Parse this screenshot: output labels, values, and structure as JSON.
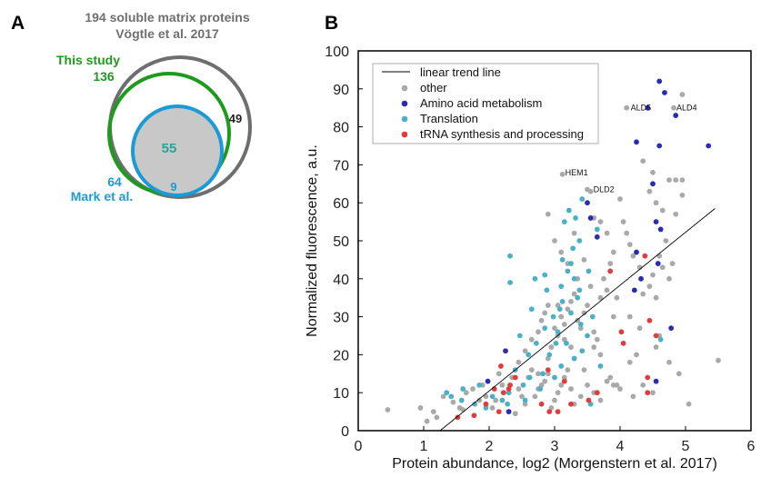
{
  "panels": {
    "a_letter": "A",
    "b_letter": "B"
  },
  "venn": {
    "title_line1": "194 soluble matrix proteins",
    "title_line2": "Vögtle et al. 2017",
    "this_study": {
      "label": "This study",
      "count": "136",
      "color": "#1e9a1e"
    },
    "mark": {
      "label": "Mark et al.",
      "count": "64",
      "color": "#1b9ad6"
    },
    "outer": {
      "color": "#6e6e6e"
    },
    "outer_only": "49",
    "overlap_all": "55",
    "mark_only_region": "9",
    "overlap_fill": "#c8c8c8",
    "overlap_text_color": "#2aa39b"
  },
  "chart_data": {
    "type": "scatter",
    "title": "",
    "xlabel": "Protein abundance, log2 (Morgenstern et al. 2017)",
    "ylabel": "Normalized fluorescence, a.u.",
    "xlim": [
      0,
      6
    ],
    "ylim": [
      0,
      100
    ],
    "xticks": [
      "0",
      "1",
      "2",
      "3",
      "4",
      "5",
      "6"
    ],
    "yticks": [
      "0",
      "10",
      "20",
      "30",
      "40",
      "50",
      "60",
      "70",
      "80",
      "90",
      "100"
    ],
    "grid": false,
    "legend_position": "top-left",
    "trend_line": {
      "name": "linear trend line",
      "x": [
        1.25,
        5.45
      ],
      "y": [
        0,
        58.5
      ],
      "color": "#000000"
    },
    "series": [
      {
        "name": "other",
        "color": "#a9a9a9",
        "points": [
          [
            0.45,
            5.5
          ],
          [
            0.95,
            6
          ],
          [
            1.05,
            2.5
          ],
          [
            1.15,
            5
          ],
          [
            1.2,
            3.5
          ],
          [
            1.3,
            9
          ],
          [
            1.45,
            7.5
          ],
          [
            1.55,
            6
          ],
          [
            1.65,
            10
          ],
          [
            1.75,
            11
          ],
          [
            1.85,
            8
          ],
          [
            1.95,
            9
          ],
          [
            2.05,
            6
          ],
          [
            2.2,
            12
          ],
          [
            2.3,
            5
          ],
          [
            2.45,
            11
          ],
          [
            2.55,
            7
          ],
          [
            2.6,
            14
          ],
          [
            2.65,
            16
          ],
          [
            2.7,
            9
          ],
          [
            2.75,
            11
          ],
          [
            2.8,
            12
          ],
          [
            2.85,
            13
          ],
          [
            2.9,
            15
          ],
          [
            2.95,
            6
          ],
          [
            3.0,
            8
          ],
          [
            3.05,
            10
          ],
          [
            3.1,
            12
          ],
          [
            3.15,
            14
          ],
          [
            3.2,
            16
          ],
          [
            3.25,
            11
          ],
          [
            3.3,
            7
          ],
          [
            3.4,
            9
          ],
          [
            3.5,
            12
          ],
          [
            3.6,
            10
          ],
          [
            3.7,
            8
          ],
          [
            3.8,
            13
          ],
          [
            3.9,
            12
          ],
          [
            4.0,
            11
          ],
          [
            4.2,
            9
          ],
          [
            4.5,
            10
          ],
          [
            5.05,
            7
          ],
          [
            2.45,
            18
          ],
          [
            2.55,
            21
          ],
          [
            2.65,
            24
          ],
          [
            2.75,
            26
          ],
          [
            2.8,
            29
          ],
          [
            2.85,
            31
          ],
          [
            2.9,
            33
          ],
          [
            2.95,
            22
          ],
          [
            3.0,
            27
          ],
          [
            3.05,
            25
          ],
          [
            3.1,
            30
          ],
          [
            3.15,
            28
          ],
          [
            3.2,
            32
          ],
          [
            3.25,
            34
          ],
          [
            3.3,
            36
          ],
          [
            3.35,
            29
          ],
          [
            3.4,
            27
          ],
          [
            3.45,
            31
          ],
          [
            3.5,
            33
          ],
          [
            3.55,
            38
          ],
          [
            3.6,
            26
          ],
          [
            3.65,
            24
          ],
          [
            3.7,
            35
          ],
          [
            3.75,
            40
          ],
          [
            3.8,
            37
          ],
          [
            3.85,
            44
          ],
          [
            3.9,
            30
          ],
          [
            3.95,
            35
          ],
          [
            2.9,
            57
          ],
          [
            3.0,
            50
          ],
          [
            3.1,
            47
          ],
          [
            3.2,
            44
          ],
          [
            3.3,
            52
          ],
          [
            3.45,
            45
          ],
          [
            3.55,
            63
          ],
          [
            3.6,
            56
          ],
          [
            3.7,
            55
          ],
          [
            3.8,
            52
          ],
          [
            3.9,
            47
          ],
          [
            4.0,
            61
          ],
          [
            4.05,
            55
          ],
          [
            4.1,
            52
          ],
          [
            4.15,
            49
          ],
          [
            4.2,
            46
          ],
          [
            4.3,
            43
          ],
          [
            4.35,
            36
          ],
          [
            4.45,
            38
          ],
          [
            4.5,
            41
          ],
          [
            4.55,
            35
          ],
          [
            4.6,
            46
          ],
          [
            4.65,
            43
          ],
          [
            4.7,
            50
          ],
          [
            4.75,
            40
          ],
          [
            4.85,
            57
          ],
          [
            4.95,
            62
          ],
          [
            4.55,
            60
          ],
          [
            4.65,
            58
          ],
          [
            4.85,
            66
          ],
          [
            4.75,
            66
          ],
          [
            4.95,
            66
          ],
          [
            4.35,
            71
          ],
          [
            4.5,
            68
          ],
          [
            4.45,
            63
          ],
          [
            4.1,
            85
          ],
          [
            4.82,
            85
          ],
          [
            4.95,
            88.5
          ],
          [
            5.5,
            18.5
          ],
          [
            3.12,
            67.5
          ],
          [
            3.5,
            63.5
          ],
          [
            4.15,
            30
          ],
          [
            4.3,
            27
          ],
          [
            4.55,
            22
          ],
          [
            4.75,
            18
          ],
          [
            2.35,
            14
          ],
          [
            2.5,
            9
          ],
          [
            3.95,
            12
          ],
          [
            4.15,
            18
          ],
          [
            4.35,
            12
          ],
          [
            3.3,
            19
          ],
          [
            3.45,
            16
          ],
          [
            3.6,
            22
          ],
          [
            2.1,
            8
          ],
          [
            1.9,
            12
          ],
          [
            2.75,
            15
          ],
          [
            2.15,
            15
          ],
          [
            2.4,
            4.5
          ],
          [
            1.6,
            5.5
          ],
          [
            4.8,
            44
          ],
          [
            3.85,
            14
          ],
          [
            3.7,
            20
          ],
          [
            3.25,
            22
          ],
          [
            3.35,
            40
          ],
          [
            4.25,
            20
          ],
          [
            4.6,
            25
          ],
          [
            4.9,
            15
          ],
          [
            3.05,
            33
          ],
          [
            2.9,
            19
          ],
          [
            3.15,
            24
          ]
        ]
      },
      {
        "name": "Amino acid metabolism",
        "color": "#2b2bb0",
        "points": [
          [
            4.6,
            92
          ],
          [
            4.68,
            89
          ],
          [
            4.42,
            85
          ],
          [
            4.25,
            76
          ],
          [
            4.6,
            75
          ],
          [
            5.35,
            75
          ],
          [
            4.85,
            83
          ],
          [
            4.5,
            65
          ],
          [
            4.55,
            55
          ],
          [
            4.25,
            47
          ],
          [
            4.58,
            44
          ],
          [
            3.65,
            51
          ],
          [
            3.5,
            60
          ],
          [
            4.32,
            40
          ],
          [
            4.22,
            37
          ],
          [
            4.78,
            27
          ],
          [
            2.25,
            21
          ],
          [
            1.98,
            13
          ],
          [
            2.3,
            5
          ],
          [
            4.55,
            13
          ],
          [
            3.55,
            56
          ],
          [
            4.62,
            53
          ]
        ]
      },
      {
        "name": "Translation",
        "color": "#4ab0c8",
        "points": [
          [
            2.32,
            46
          ],
          [
            2.32,
            39
          ],
          [
            2.7,
            40
          ],
          [
            3.22,
            58
          ],
          [
            3.15,
            55
          ],
          [
            3.42,
            61
          ],
          [
            3.65,
            53
          ],
          [
            3.32,
            56
          ],
          [
            3.28,
            48
          ],
          [
            3.12,
            45
          ],
          [
            3.2,
            42
          ],
          [
            3.3,
            40
          ],
          [
            3.38,
            37
          ],
          [
            3.12,
            34
          ],
          [
            3.25,
            31
          ],
          [
            3.4,
            28
          ],
          [
            3.05,
            26
          ],
          [
            3.18,
            23
          ],
          [
            3.42,
            21
          ],
          [
            2.92,
            20
          ],
          [
            3.1,
            17
          ],
          [
            2.82,
            15
          ],
          [
            2.62,
            14
          ],
          [
            2.52,
            12
          ],
          [
            2.3,
            10
          ],
          [
            2.2,
            8
          ],
          [
            1.95,
            6
          ],
          [
            1.78,
            7
          ],
          [
            1.58,
            8
          ],
          [
            1.35,
            10
          ],
          [
            1.6,
            11
          ],
          [
            1.85,
            12
          ],
          [
            2.05,
            9
          ],
          [
            2.4,
            16
          ],
          [
            2.6,
            20
          ],
          [
            2.72,
            23
          ],
          [
            2.85,
            27
          ],
          [
            2.98,
            30
          ],
          [
            3.08,
            32
          ],
          [
            3.35,
            35
          ],
          [
            3.52,
            42
          ],
          [
            3.58,
            30
          ],
          [
            3.5,
            25
          ],
          [
            3.3,
            19
          ],
          [
            3.0,
            14
          ],
          [
            2.78,
            11
          ],
          [
            2.55,
            8
          ],
          [
            2.28,
            7
          ],
          [
            1.42,
            9
          ],
          [
            2.88,
            37
          ],
          [
            3.25,
            44
          ],
          [
            3.1,
            38
          ],
          [
            3.02,
            23
          ],
          [
            2.65,
            32
          ],
          [
            3.7,
            17
          ],
          [
            3.55,
            7
          ],
          [
            4.62,
            24
          ],
          [
            3.38,
            50
          ],
          [
            2.47,
            25
          ],
          [
            2.85,
            41
          ]
        ]
      },
      {
        "name": "tRNA synthesis and processing",
        "color": "#e03c3c",
        "points": [
          [
            1.52,
            3.5
          ],
          [
            1.77,
            4
          ],
          [
            1.95,
            7
          ],
          [
            2.08,
            11
          ],
          [
            2.22,
            10
          ],
          [
            2.32,
            12
          ],
          [
            2.18,
            17
          ],
          [
            2.3,
            11
          ],
          [
            2.8,
            7
          ],
          [
            2.92,
            5
          ],
          [
            3.05,
            5
          ],
          [
            3.15,
            13
          ],
          [
            3.25,
            7
          ],
          [
            3.52,
            8
          ],
          [
            3.65,
            10
          ],
          [
            3.85,
            42
          ],
          [
            4.02,
            26
          ],
          [
            4.05,
            23
          ],
          [
            4.45,
            29
          ],
          [
            4.55,
            25
          ],
          [
            4.42,
            14
          ],
          [
            4.42,
            10
          ],
          [
            4.38,
            46
          ],
          [
            2.4,
            14
          ],
          [
            2.15,
            5
          ],
          [
            2.9,
            16
          ]
        ]
      }
    ],
    "annotations": [
      {
        "text": "ALD5",
        "x": 4.12,
        "y": 85
      },
      {
        "text": "ALD4",
        "x": 4.82,
        "y": 85
      },
      {
        "text": "HEM1",
        "x": 3.12,
        "y": 68
      },
      {
        "text": "DLD2",
        "x": 3.55,
        "y": 63.5
      }
    ]
  }
}
